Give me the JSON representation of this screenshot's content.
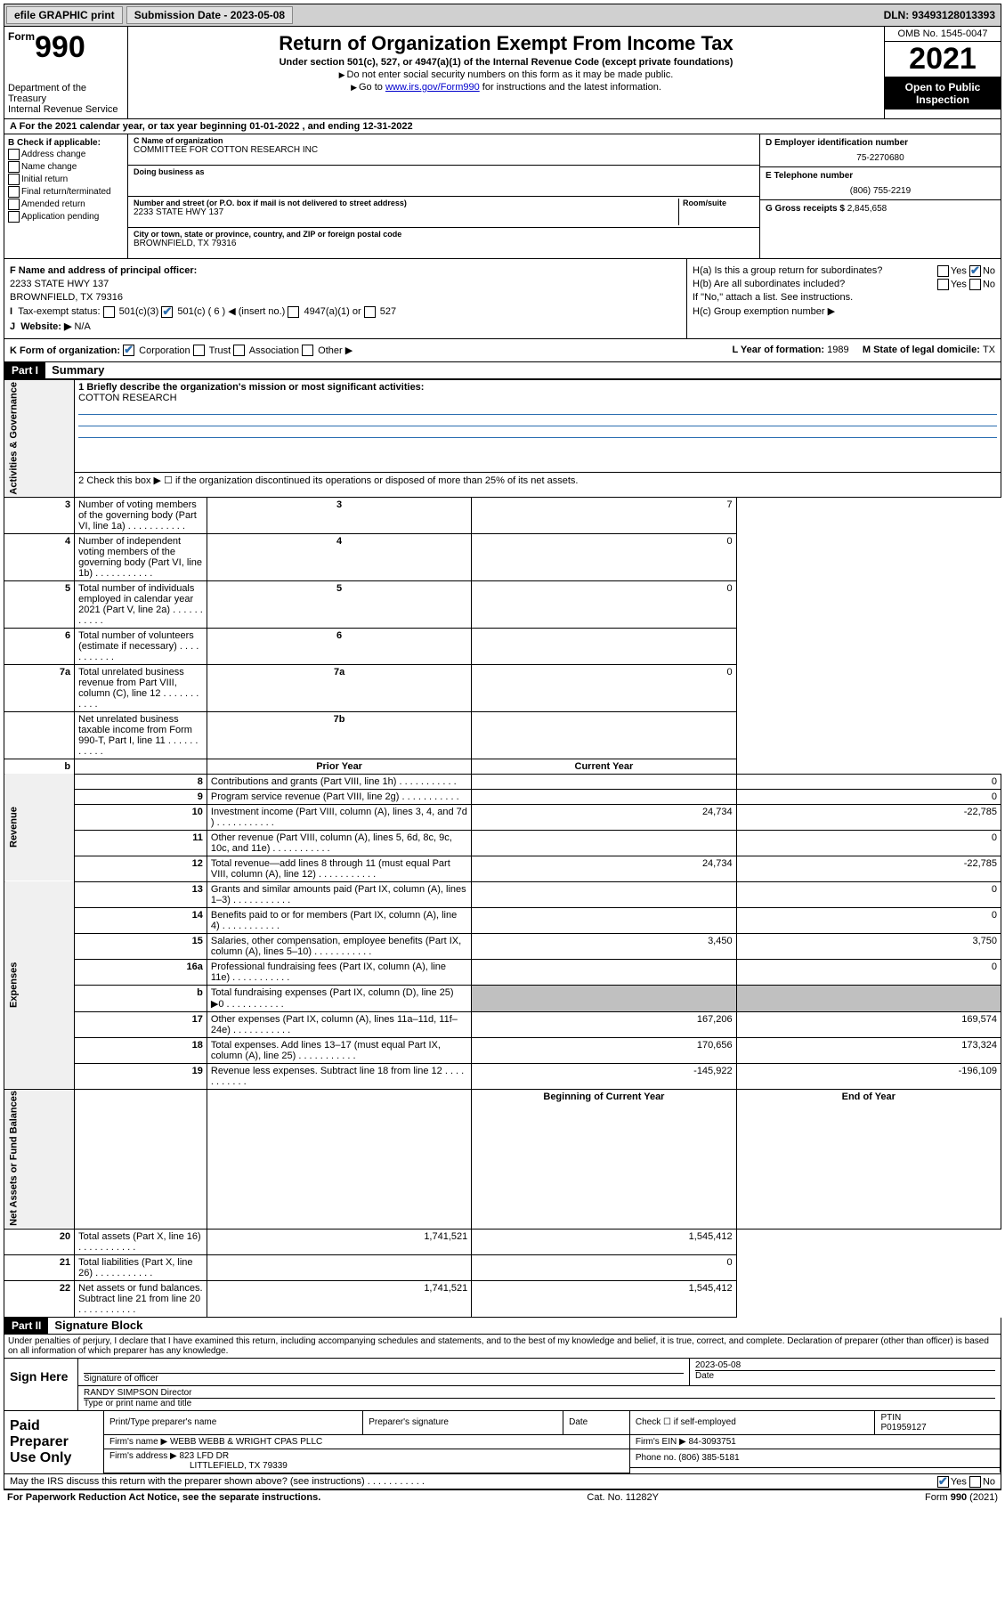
{
  "topbar": {
    "efile": "efile GRAPHIC print",
    "submission_label": "Submission Date - 2023-05-08",
    "dln": "DLN: 93493128013393"
  },
  "header": {
    "form_word": "Form",
    "form_num": "990",
    "dept": "Department of the Treasury",
    "irs": "Internal Revenue Service",
    "title": "Return of Organization Exempt From Income Tax",
    "subtitle": "Under section 501(c), 527, or 4947(a)(1) of the Internal Revenue Code (except private foundations)",
    "note1": "Do not enter social security numbers on this form as it may be made public.",
    "note2_pre": "Go to ",
    "note2_link": "www.irs.gov/Form990",
    "note2_post": " for instructions and the latest information.",
    "omb": "OMB No. 1545-0047",
    "year": "2021",
    "inspection": "Open to Public Inspection"
  },
  "rowA": "A For the 2021 calendar year, or tax year beginning 01-01-2022   , and ending 12-31-2022",
  "colB": {
    "label": "B Check if applicable:",
    "opts": [
      "Address change",
      "Name change",
      "Initial return",
      "Final return/terminated",
      "Amended return",
      "Application pending"
    ]
  },
  "colC": {
    "name_label": "C Name of organization",
    "name": "COMMITTEE FOR COTTON RESEARCH INC",
    "dba_label": "Doing business as",
    "dba": "",
    "street_label": "Number and street (or P.O. box if mail is not delivered to street address)",
    "room_label": "Room/suite",
    "street": "2233 STATE HWY 137",
    "city_label": "City or town, state or province, country, and ZIP or foreign postal code",
    "city": "BROWNFIELD, TX  79316"
  },
  "colD": {
    "ein_label": "D Employer identification number",
    "ein": "75-2270680",
    "phone_label": "E Telephone number",
    "phone": "(806) 755-2219",
    "gross_label": "G Gross receipts $",
    "gross": "2,845,658"
  },
  "blockF": {
    "f_label": "F  Name and address of principal officer:",
    "f_addr1": "2233 STATE HWY 137",
    "f_addr2": "BROWNFIELD, TX  79316",
    "i_label": "Tax-exempt status:",
    "i_501c3": "501(c)(3)",
    "i_501c": "501(c) ( 6 ) ◀ (insert no.)",
    "i_4947": "4947(a)(1) or",
    "i_527": "527",
    "j_label": "Website: ▶",
    "j_val": "N/A"
  },
  "blockH": {
    "ha": "H(a)  Is this a group return for subordinates?",
    "hb": "H(b)  Are all subordinates included?",
    "hb_note": "If \"No,\" attach a list. See instructions.",
    "hc": "H(c)  Group exemption number ▶",
    "yes": "Yes",
    "no": "No"
  },
  "blockK": {
    "k_label": "K Form of organization:",
    "k_opts": [
      "Corporation",
      "Trust",
      "Association",
      "Other ▶"
    ],
    "l_label": "L Year of formation: ",
    "l_val": "1989",
    "m_label": "M State of legal domicile: ",
    "m_val": "TX"
  },
  "part1": {
    "hdr": "Part I",
    "title": "Summary",
    "line1_label": "1  Briefly describe the organization's mission or most significant activities:",
    "line1_val": "COTTON RESEARCH",
    "line2": "2   Check this box ▶ ☐  if the organization discontinued its operations or disposed of more than 25% of its net assets.",
    "rows_simple": [
      {
        "n": "3",
        "text": "Number of voting members of the governing body (Part VI, line 1a)",
        "box": "3",
        "val": "7"
      },
      {
        "n": "4",
        "text": "Number of independent voting members of the governing body (Part VI, line 1b)",
        "box": "4",
        "val": "0"
      },
      {
        "n": "5",
        "text": "Total number of individuals employed in calendar year 2021 (Part V, line 2a)",
        "box": "5",
        "val": "0"
      },
      {
        "n": "6",
        "text": "Total number of volunteers (estimate if necessary)",
        "box": "6",
        "val": ""
      },
      {
        "n": "7a",
        "text": "Total unrelated business revenue from Part VIII, column (C), line 12",
        "box": "7a",
        "val": "0"
      },
      {
        "n": "",
        "text": "Net unrelated business taxable income from Form 990-T, Part I, line 11",
        "box": "7b",
        "val": ""
      }
    ],
    "col_hdr_prior": "Prior Year",
    "col_hdr_curr": "Current Year",
    "col_hdr_beg": "Beginning of Current Year",
    "col_hdr_end": "End of Year",
    "tabs": {
      "ag": "Activities & Governance",
      "rev": "Revenue",
      "exp": "Expenses",
      "net": "Net Assets or Fund Balances"
    },
    "rev_rows": [
      {
        "n": "8",
        "text": "Contributions and grants (Part VIII, line 1h)",
        "prior": "",
        "curr": "0"
      },
      {
        "n": "9",
        "text": "Program service revenue (Part VIII, line 2g)",
        "prior": "",
        "curr": "0"
      },
      {
        "n": "10",
        "text": "Investment income (Part VIII, column (A), lines 3, 4, and 7d )",
        "prior": "24,734",
        "curr": "-22,785"
      },
      {
        "n": "11",
        "text": "Other revenue (Part VIII, column (A), lines 5, 6d, 8c, 9c, 10c, and 11e)",
        "prior": "",
        "curr": "0"
      },
      {
        "n": "12",
        "text": "Total revenue—add lines 8 through 11 (must equal Part VIII, column (A), line 12)",
        "prior": "24,734",
        "curr": "-22,785"
      }
    ],
    "exp_rows": [
      {
        "n": "13",
        "text": "Grants and similar amounts paid (Part IX, column (A), lines 1–3)",
        "prior": "",
        "curr": "0"
      },
      {
        "n": "14",
        "text": "Benefits paid to or for members (Part IX, column (A), line 4)",
        "prior": "",
        "curr": "0"
      },
      {
        "n": "15",
        "text": "Salaries, other compensation, employee benefits (Part IX, column (A), lines 5–10)",
        "prior": "3,450",
        "curr": "3,750"
      },
      {
        "n": "16a",
        "text": "Professional fundraising fees (Part IX, column (A), line 11e)",
        "prior": "",
        "curr": "0"
      },
      {
        "n": "b",
        "text": "Total fundraising expenses (Part IX, column (D), line 25) ▶0",
        "prior": "__shade__",
        "curr": "__shade__"
      },
      {
        "n": "17",
        "text": "Other expenses (Part IX, column (A), lines 11a–11d, 11f–24e)",
        "prior": "167,206",
        "curr": "169,574"
      },
      {
        "n": "18",
        "text": "Total expenses. Add lines 13–17 (must equal Part IX, column (A), line 25)",
        "prior": "170,656",
        "curr": "173,324"
      },
      {
        "n": "19",
        "text": "Revenue less expenses. Subtract line 18 from line 12",
        "prior": "-145,922",
        "curr": "-196,109"
      }
    ],
    "net_rows": [
      {
        "n": "20",
        "text": "Total assets (Part X, line 16)",
        "prior": "1,741,521",
        "curr": "1,545,412"
      },
      {
        "n": "21",
        "text": "Total liabilities (Part X, line 26)",
        "prior": "",
        "curr": "0"
      },
      {
        "n": "22",
        "text": "Net assets or fund balances. Subtract line 21 from line 20",
        "prior": "1,741,521",
        "curr": "1,545,412"
      }
    ]
  },
  "part2": {
    "hdr": "Part II",
    "title": "Signature Block"
  },
  "penalty": "Under penalties of perjury, I declare that I have examined this return, including accompanying schedules and statements, and to the best of my knowledge and belief, it is true, correct, and complete. Declaration of preparer (other than officer) is based on all information of which preparer has any knowledge.",
  "sign": {
    "here": "Sign Here",
    "sig_label": "Signature of officer",
    "date_label": "Date",
    "date": "2023-05-08",
    "name": "RANDY SIMPSON  Director",
    "name_label": "Type or print name and title"
  },
  "paid": {
    "title": "Paid Preparer Use Only",
    "h1": "Print/Type preparer's name",
    "h2": "Preparer's signature",
    "h3": "Date",
    "h4_pre": "Check ☐ if self-employed",
    "h5": "PTIN",
    "ptin": "P01959127",
    "firm_name_label": "Firm's name    ▶",
    "firm_name": "WEBB WEBB & WRIGHT CPAS PLLC",
    "firm_ein_label": "Firm's EIN ▶",
    "firm_ein": "84-3093751",
    "firm_addr_label": "Firm's address ▶",
    "firm_addr1": "823 LFD DR",
    "firm_addr2": "LITTLEFIELD, TX  79339",
    "firm_phone_label": "Phone no.",
    "firm_phone": "(806) 385-5181"
  },
  "footer": {
    "discuss": "May the IRS discuss this return with the preparer shown above? (see instructions)",
    "paperwork": "For Paperwork Reduction Act Notice, see the separate instructions.",
    "cat": "Cat. No. 11282Y",
    "formno": "Form 990 (2021)",
    "yes": "Yes",
    "no": "No"
  }
}
